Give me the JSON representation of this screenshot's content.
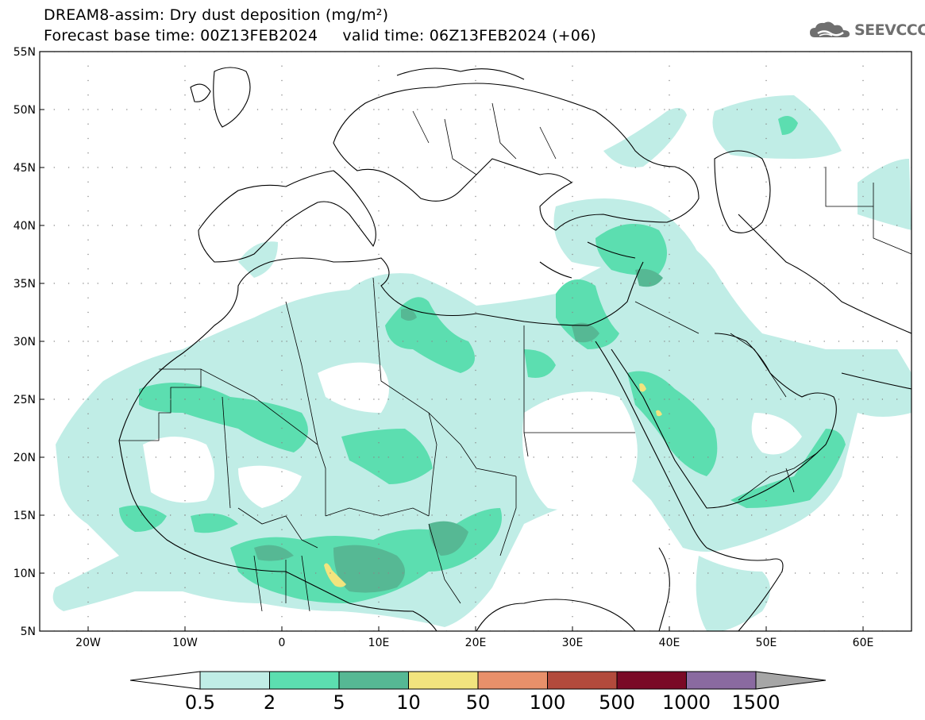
{
  "title": {
    "line1": "DREAM8-assim: Dry dust deposition (mg/m²)",
    "line2": "Forecast base time: 00Z13FEB2024     valid time: 06Z13FEB2024 (+06)"
  },
  "logo": {
    "text": "SEEVCCC",
    "icon": "cloud-logo-icon"
  },
  "map": {
    "variable": "Dry dust deposition",
    "units": "mg/m²",
    "lat_ticks": [
      "55N",
      "50N",
      "45N",
      "40N",
      "35N",
      "30N",
      "25N",
      "20N",
      "15N",
      "10N",
      "5N"
    ],
    "lon_ticks": [
      "20W",
      "10W",
      "0",
      "10E",
      "20E",
      "30E",
      "40E",
      "50E",
      "60E"
    ],
    "lat_range": [
      5,
      55
    ],
    "lon_range": [
      -25,
      65
    ],
    "grid": "dotted",
    "colors": {
      "ocean": "#ffffff",
      "coastline": "#000000"
    }
  },
  "colorbar": {
    "labels": [
      "0.5",
      "2",
      "5",
      "10",
      "50",
      "100",
      "500",
      "1000",
      "1500"
    ],
    "colors": [
      "#c0ede6",
      "#5cdeb0",
      "#56b894",
      "#f2e47e",
      "#e8906a",
      "#b24a3c",
      "#7a0a26",
      "#8a6aa0",
      "#a6a6a6"
    ],
    "min_color": "#ffffff",
    "max_color": "#a6a6a6"
  }
}
